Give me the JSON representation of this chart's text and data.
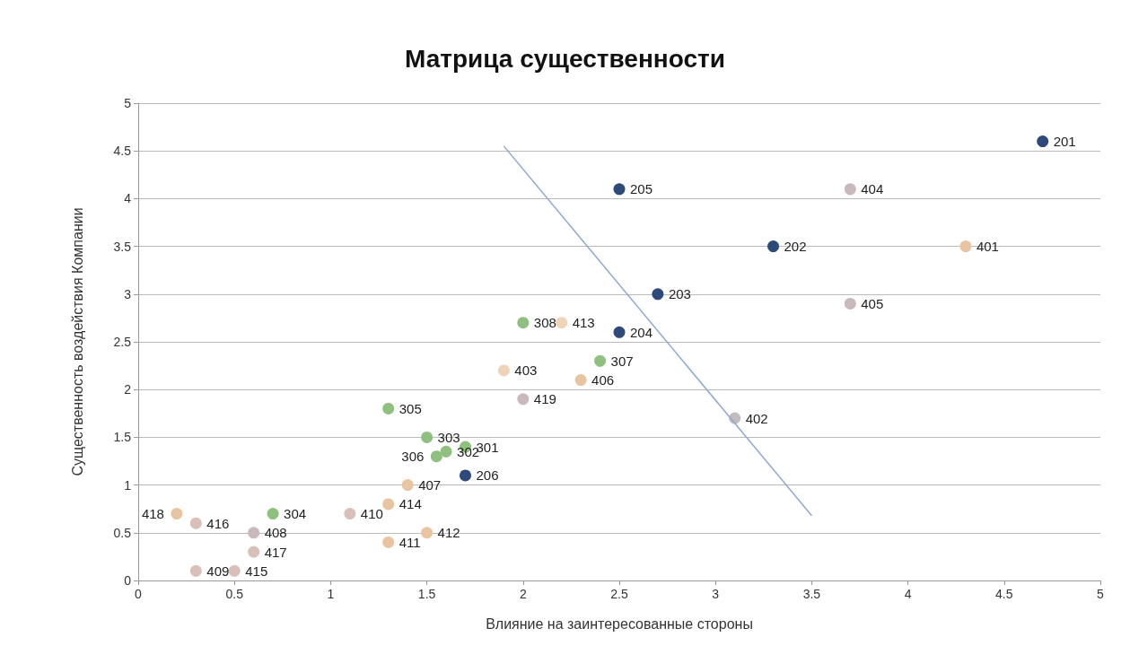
{
  "chart_data": {
    "type": "scatter",
    "title": "Матрица существенности",
    "xlabel": "Влияние на заинтересованные стороны",
    "ylabel": "Существенность воздействия Компании",
    "xlim": [
      0,
      5
    ],
    "ylim": [
      0,
      5
    ],
    "xticks": [
      0,
      0.5,
      1,
      1.5,
      2,
      2.5,
      3,
      3.5,
      4,
      4.5,
      5
    ],
    "yticks": [
      0,
      0.5,
      1,
      1.5,
      2,
      2.5,
      3,
      3.5,
      4,
      4.5,
      5
    ],
    "grid": "y",
    "series": [
      {
        "color": "#2e4a7a",
        "marker": "circle",
        "x": [
          4.7,
          2.5,
          3.3,
          2.7,
          2.5,
          1.7
        ],
        "values": [
          4.6,
          4.1,
          3.5,
          3.0,
          2.6,
          1.1
        ]
      },
      {
        "color": "#8fc07f",
        "marker": "circle",
        "x": [
          2.0,
          2.4,
          1.3,
          1.5,
          1.6,
          1.55,
          1.7,
          0.7
        ],
        "values": [
          2.7,
          2.3,
          1.8,
          1.5,
          1.35,
          1.3,
          1.4,
          0.7
        ]
      },
      {
        "color": "#e8c4a0",
        "marker": "circle",
        "colors": [
          "#c9b8bc",
          "#e8c4a0",
          "#c9b8bc",
          "#c4bcbc",
          "#f0d4b8",
          "#f0d4b8",
          "#c9b8bc",
          "#e8c4a0",
          "#e8c4a0",
          "#d8c0b8",
          "#e8c4a0",
          "#e8c4a0",
          "#e8c4a0",
          "#c9b8bc",
          "#d8c0b8",
          "#d8c0b8",
          "#d8c0b8",
          "#d8c0b8",
          "#e8c4a0"
        ],
        "x": [
          3.7,
          4.3,
          3.7,
          3.1,
          2.2,
          1.9,
          2.0,
          2.3,
          1.4,
          1.1,
          1.3,
          1.5,
          1.3,
          0.6,
          0.6,
          0.5,
          0.3,
          0.3,
          0.2
        ],
        "values": [
          4.1,
          3.5,
          2.9,
          1.7,
          2.7,
          2.2,
          1.9,
          2.1,
          1.0,
          0.7,
          0.8,
          0.5,
          0.4,
          0.5,
          0.3,
          0.1,
          0.1,
          0.6,
          0.7
        ]
      },
      {
        "type": "line",
        "marker": "none",
        "color": "#8fa8d0",
        "x": [
          1.9,
          3.5
        ],
        "values": [
          4.55,
          0.68
        ]
      }
    ],
    "annotations": [
      {
        "text": "201",
        "x": 4.7,
        "y": 4.6
      },
      {
        "text": "205",
        "x": 2.5,
        "y": 4.1
      },
      {
        "text": "202",
        "x": 3.3,
        "y": 3.5
      },
      {
        "text": "203",
        "x": 2.7,
        "y": 3.0
      },
      {
        "text": "204",
        "x": 2.5,
        "y": 2.6
      },
      {
        "text": "206",
        "x": 1.7,
        "y": 1.1
      },
      {
        "text": "308",
        "x": 2.0,
        "y": 2.7
      },
      {
        "text": "307",
        "x": 2.4,
        "y": 2.3
      },
      {
        "text": "305",
        "x": 1.3,
        "y": 1.8
      },
      {
        "text": "303",
        "x": 1.5,
        "y": 1.5
      },
      {
        "text": "302",
        "x": 1.6,
        "y": 1.35
      },
      {
        "text": "306",
        "x": 1.55,
        "y": 1.3
      },
      {
        "text": "301",
        "x": 1.7,
        "y": 1.4
      },
      {
        "text": "304",
        "x": 0.7,
        "y": 0.7
      },
      {
        "text": "404",
        "x": 3.7,
        "y": 4.1
      },
      {
        "text": "401",
        "x": 4.3,
        "y": 3.5
      },
      {
        "text": "405",
        "x": 3.7,
        "y": 2.9
      },
      {
        "text": "402",
        "x": 3.1,
        "y": 1.7
      },
      {
        "text": "413",
        "x": 2.2,
        "y": 2.7
      },
      {
        "text": "403",
        "x": 1.9,
        "y": 2.2
      },
      {
        "text": "419",
        "x": 2.0,
        "y": 1.9
      },
      {
        "text": "406",
        "x": 2.3,
        "y": 2.1
      },
      {
        "text": "407",
        "x": 1.4,
        "y": 1.0
      },
      {
        "text": "410",
        "x": 1.1,
        "y": 0.7
      },
      {
        "text": "414",
        "x": 1.3,
        "y": 0.8
      },
      {
        "text": "412",
        "x": 1.5,
        "y": 0.5
      },
      {
        "text": "411",
        "x": 1.3,
        "y": 0.4
      },
      {
        "text": "408",
        "x": 0.6,
        "y": 0.5
      },
      {
        "text": "417",
        "x": 0.6,
        "y": 0.3
      },
      {
        "text": "415",
        "x": 0.5,
        "y": 0.1
      },
      {
        "text": "409",
        "x": 0.3,
        "y": 0.1
      },
      {
        "text": "416",
        "x": 0.3,
        "y": 0.6
      },
      {
        "text": "418",
        "x": 0.2,
        "y": 0.7
      }
    ]
  }
}
